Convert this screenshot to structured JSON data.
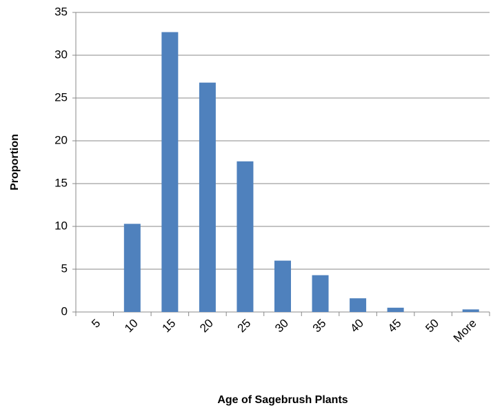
{
  "chart_data": {
    "type": "bar",
    "x_label": "Age of Sagebrush Plants",
    "y_label": "Proportion",
    "categories": [
      "5",
      "10",
      "15",
      "20",
      "25",
      "30",
      "35",
      "40",
      "45",
      "50",
      "More"
    ],
    "values": [
      0,
      10.3,
      32.7,
      26.8,
      17.6,
      6.0,
      4.3,
      1.6,
      0.5,
      0,
      0.3
    ],
    "color": "#4f81bd",
    "ylim": [
      0,
      35
    ],
    "yticks": [
      0,
      5,
      10,
      15,
      20,
      25,
      30,
      35
    ],
    "grid": true
  }
}
